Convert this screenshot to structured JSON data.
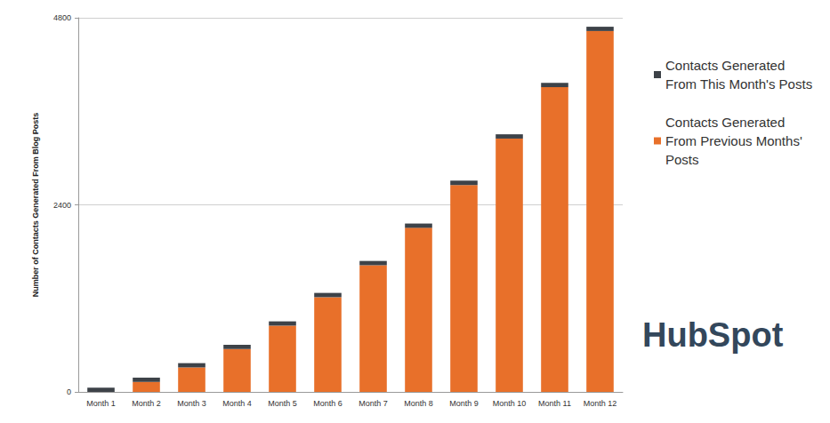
{
  "chart_data": {
    "type": "bar",
    "stacked": true,
    "y_label": "Number of Contacts Generated From Blog Posts",
    "categories": [
      "Month 1",
      "Month 2",
      "Month 3",
      "Month 4",
      "Month 5",
      "Month 6",
      "Month 7",
      "Month 8",
      "Month 9",
      "Month 10",
      "Month 11",
      "Month 12"
    ],
    "series": [
      {
        "name": "Contacts Generated From This Month's Posts",
        "color": "#3d4248",
        "values": [
          55,
          55,
          55,
          55,
          55,
          55,
          55,
          55,
          55,
          55,
          55,
          55
        ]
      },
      {
        "name": "Contacts Generated From Previous Months' Posts",
        "color": "#e8702a",
        "values": [
          0,
          128,
          314,
          550,
          850,
          1215,
          1625,
          2105,
          2655,
          3250,
          3910,
          4630
        ]
      }
    ],
    "ylim": [
      0,
      4800
    ],
    "yticks": [
      0,
      2400,
      4800
    ],
    "grid": true,
    "legend": "right",
    "annotations": [
      "HubSpot"
    ]
  }
}
